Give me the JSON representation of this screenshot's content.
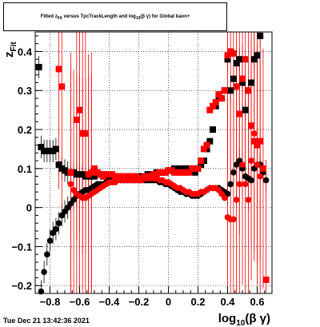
{
  "chart_data": {
    "type": "scatter",
    "title": "Fitted z_Fit versus TpcTrackLength and log10(βγ) for Global kaon+",
    "xlabel": "log10(β γ)",
    "ylabel": "z_Fit",
    "xlim": [
      -0.9,
      0.7
    ],
    "ylim": [
      -0.22,
      0.45
    ],
    "grid": true,
    "x_ticks": [
      "−0.8",
      "−0.6",
      "−0.4",
      "−0.2",
      "0",
      "0.2",
      "0.4",
      "0.6"
    ],
    "y_ticks": [
      "−0.2",
      "−0.1",
      "0",
      "0.1",
      "0.2",
      "0.3",
      "0.4"
    ],
    "series": [
      {
        "marker": "square",
        "color": "#000000",
        "points": [
          [
            -0.875,
            0.36
          ],
          [
            -0.86,
            0.155
          ],
          [
            -0.84,
            0.145
          ],
          [
            -0.82,
            0.145
          ],
          [
            -0.8,
            0.145
          ],
          [
            -0.78,
            0.145
          ],
          [
            -0.76,
            0.15
          ],
          [
            -0.74,
            0.11
          ],
          [
            -0.72,
            0.1
          ],
          [
            -0.7,
            0.095
          ],
          [
            -0.68,
            0.09
          ],
          [
            -0.66,
            0.09
          ],
          [
            -0.64,
            0.09
          ],
          [
            -0.62,
            0.085
          ],
          [
            -0.6,
            0.085
          ],
          [
            -0.58,
            0.085
          ],
          [
            -0.56,
            0.08
          ],
          [
            -0.54,
            0.08
          ],
          [
            -0.52,
            0.08
          ],
          [
            -0.5,
            0.08
          ],
          [
            -0.48,
            0.085
          ],
          [
            -0.46,
            0.085
          ],
          [
            -0.44,
            0.08
          ],
          [
            -0.42,
            0.08
          ],
          [
            -0.4,
            0.08
          ],
          [
            -0.38,
            0.075
          ],
          [
            -0.36,
            0.075
          ],
          [
            -0.34,
            0.08
          ],
          [
            -0.32,
            0.075
          ],
          [
            -0.3,
            0.075
          ],
          [
            -0.28,
            0.075
          ],
          [
            -0.26,
            0.08
          ],
          [
            -0.24,
            0.075
          ],
          [
            -0.22,
            0.08
          ],
          [
            -0.2,
            0.08
          ],
          [
            -0.18,
            0.08
          ],
          [
            -0.16,
            0.08
          ],
          [
            -0.14,
            0.085
          ],
          [
            -0.12,
            0.085
          ],
          [
            -0.1,
            0.085
          ],
          [
            -0.08,
            0.09
          ],
          [
            -0.06,
            0.09
          ],
          [
            -0.04,
            0.09
          ],
          [
            -0.02,
            0.09
          ],
          [
            0.0,
            0.095
          ],
          [
            0.02,
            0.095
          ],
          [
            0.04,
            0.1
          ],
          [
            0.06,
            0.095
          ],
          [
            0.08,
            0.1
          ],
          [
            0.1,
            0.095
          ],
          [
            0.12,
            0.1
          ],
          [
            0.14,
            0.1
          ],
          [
            0.16,
            0.095
          ],
          [
            0.18,
            0.09
          ],
          [
            0.2,
            0.1
          ],
          [
            0.22,
            0.11
          ],
          [
            0.24,
            0.12
          ],
          [
            0.26,
            0.15
          ],
          [
            0.28,
            0.17
          ],
          [
            0.3,
            0.2
          ],
          [
            0.32,
            0.26
          ],
          [
            0.34,
            0.28
          ],
          [
            0.36,
            0.28
          ],
          [
            0.38,
            0.3
          ],
          [
            0.4,
            0.38
          ],
          [
            0.42,
            0.3
          ],
          [
            0.44,
            0.33
          ],
          [
            0.46,
            0.37
          ],
          [
            0.48,
            0.38
          ],
          [
            0.5,
            0.32
          ],
          [
            0.52,
            0.25
          ],
          [
            0.54,
            0.3
          ],
          [
            0.56,
            0.32
          ],
          [
            0.58,
            0.38
          ],
          [
            0.6,
            0.39
          ],
          [
            0.62,
            0.44
          ]
        ]
      },
      {
        "marker": "circle",
        "color": "#000000",
        "points": [
          [
            -0.86,
            -0.215
          ],
          [
            -0.84,
            -0.165
          ],
          [
            -0.82,
            -0.12
          ],
          [
            -0.8,
            -0.085
          ],
          [
            -0.78,
            -0.065
          ],
          [
            -0.76,
            -0.055
          ],
          [
            -0.74,
            -0.04
          ],
          [
            -0.72,
            -0.02
          ],
          [
            -0.7,
            -0.01
          ],
          [
            -0.68,
            0.0
          ],
          [
            -0.66,
            0.01
          ],
          [
            -0.64,
            0.02
          ],
          [
            -0.62,
            0.03
          ],
          [
            -0.6,
            0.035
          ],
          [
            -0.58,
            0.04
          ],
          [
            -0.56,
            0.045
          ],
          [
            -0.54,
            0.045
          ],
          [
            -0.52,
            0.05
          ],
          [
            -0.5,
            0.055
          ],
          [
            -0.48,
            0.06
          ],
          [
            -0.46,
            0.06
          ],
          [
            -0.44,
            0.06
          ],
          [
            -0.42,
            0.065
          ],
          [
            -0.4,
            0.065
          ],
          [
            -0.38,
            0.07
          ],
          [
            -0.36,
            0.07
          ],
          [
            -0.34,
            0.07
          ],
          [
            -0.32,
            0.07
          ],
          [
            -0.3,
            0.07
          ],
          [
            -0.28,
            0.07
          ],
          [
            -0.26,
            0.07
          ],
          [
            -0.24,
            0.07
          ],
          [
            -0.22,
            0.07
          ],
          [
            -0.2,
            0.07
          ],
          [
            -0.18,
            0.07
          ],
          [
            -0.16,
            0.07
          ],
          [
            -0.14,
            0.07
          ],
          [
            -0.12,
            0.07
          ],
          [
            -0.1,
            0.07
          ],
          [
            -0.08,
            0.07
          ],
          [
            -0.06,
            0.065
          ],
          [
            -0.04,
            0.065
          ],
          [
            -0.02,
            0.06
          ],
          [
            0.0,
            0.06
          ],
          [
            0.02,
            0.055
          ],
          [
            0.04,
            0.05
          ],
          [
            0.06,
            0.045
          ],
          [
            0.08,
            0.04
          ],
          [
            0.1,
            0.04
          ],
          [
            0.12,
            0.035
          ],
          [
            0.14,
            0.035
          ],
          [
            0.16,
            0.03
          ],
          [
            0.18,
            0.03
          ],
          [
            0.2,
            0.03
          ],
          [
            0.22,
            0.035
          ],
          [
            0.24,
            0.04
          ],
          [
            0.26,
            0.045
          ],
          [
            0.28,
            0.05
          ],
          [
            0.3,
            0.05
          ],
          [
            0.32,
            0.05
          ],
          [
            0.34,
            0.05
          ],
          [
            0.36,
            0.045
          ],
          [
            0.38,
            0.04
          ],
          [
            0.4,
            0.035
          ],
          [
            0.42,
            0.06
          ],
          [
            0.44,
            0.09
          ],
          [
            0.46,
            0.11
          ],
          [
            0.48,
            0.12
          ],
          [
            0.5,
            0.1
          ],
          [
            0.52,
            0.08
          ],
          [
            0.54,
            0.075
          ],
          [
            0.56,
            0.07
          ],
          [
            0.58,
            0.1
          ],
          [
            0.6,
            0.11
          ],
          [
            0.62,
            0.11
          ],
          [
            0.64,
            0.09
          ],
          [
            0.66,
            0.07
          ]
        ]
      },
      {
        "marker": "square",
        "color": "#ff0000",
        "points": [
          [
            -0.74,
            0.355
          ],
          [
            -0.72,
            0.31
          ],
          [
            -0.66,
            0.09
          ],
          [
            -0.62,
            0.225
          ],
          [
            -0.6,
            0.25
          ],
          [
            -0.58,
            0.19
          ],
          [
            -0.56,
            0.19
          ],
          [
            -0.54,
            0.085
          ],
          [
            -0.52,
            0.09
          ],
          [
            -0.5,
            0.1
          ],
          [
            -0.48,
            0.09
          ],
          [
            -0.46,
            0.085
          ],
          [
            -0.44,
            0.08
          ],
          [
            -0.42,
            0.085
          ],
          [
            -0.4,
            0.085
          ],
          [
            -0.38,
            0.085
          ],
          [
            -0.36,
            0.08
          ],
          [
            -0.34,
            0.075
          ],
          [
            -0.32,
            0.08
          ],
          [
            -0.3,
            0.08
          ],
          [
            -0.28,
            0.075
          ],
          [
            -0.26,
            0.08
          ],
          [
            -0.24,
            0.075
          ],
          [
            -0.22,
            0.08
          ],
          [
            -0.2,
            0.075
          ],
          [
            -0.18,
            0.075
          ],
          [
            -0.16,
            0.08
          ],
          [
            -0.14,
            0.08
          ],
          [
            -0.12,
            0.08
          ],
          [
            -0.1,
            0.085
          ],
          [
            -0.08,
            0.085
          ],
          [
            -0.06,
            0.09
          ],
          [
            -0.04,
            0.09
          ],
          [
            -0.02,
            0.09
          ],
          [
            0.0,
            0.095
          ],
          [
            0.02,
            0.095
          ],
          [
            0.04,
            0.09
          ],
          [
            0.06,
            0.09
          ],
          [
            0.08,
            0.09
          ],
          [
            0.1,
            0.09
          ],
          [
            0.12,
            0.09
          ],
          [
            0.14,
            0.09
          ],
          [
            0.16,
            0.1
          ],
          [
            0.18,
            0.1
          ],
          [
            0.2,
            0.1
          ],
          [
            0.22,
            0.12
          ],
          [
            0.24,
            0.15
          ],
          [
            0.26,
            0.16
          ],
          [
            0.28,
            0.25
          ],
          [
            0.3,
            0.26
          ],
          [
            0.32,
            0.27
          ],
          [
            0.34,
            0.29
          ],
          [
            0.36,
            0.28
          ],
          [
            0.38,
            0.3
          ],
          [
            0.4,
            0.39
          ],
          [
            0.42,
            0.4
          ],
          [
            0.44,
            0.395
          ],
          [
            0.46,
            0.31
          ],
          [
            0.48,
            0.24
          ],
          [
            0.5,
            0.33
          ],
          [
            0.52,
            0.38
          ],
          [
            0.54,
            0.3
          ],
          [
            0.56,
            0.21
          ],
          [
            0.58,
            0.17
          ],
          [
            0.6,
            0.16
          ],
          [
            0.62,
            0.17
          ],
          [
            0.64,
            0.1
          ],
          [
            0.66,
            -0.185
          ]
        ]
      },
      {
        "marker": "circle",
        "color": "#ff0000",
        "points": [
          [
            -0.66,
            0.06
          ],
          [
            -0.64,
            0.045
          ],
          [
            -0.62,
            0.035
          ],
          [
            -0.6,
            0.03
          ],
          [
            -0.58,
            0.025
          ],
          [
            -0.56,
            0.025
          ],
          [
            -0.54,
            0.03
          ],
          [
            -0.52,
            0.035
          ],
          [
            -0.5,
            0.04
          ],
          [
            -0.48,
            0.045
          ],
          [
            -0.46,
            0.05
          ],
          [
            -0.44,
            0.055
          ],
          [
            -0.42,
            0.06
          ],
          [
            -0.4,
            0.065
          ],
          [
            -0.38,
            0.065
          ],
          [
            -0.36,
            0.065
          ],
          [
            -0.34,
            0.07
          ],
          [
            -0.32,
            0.07
          ],
          [
            -0.3,
            0.07
          ],
          [
            -0.28,
            0.07
          ],
          [
            -0.26,
            0.07
          ],
          [
            -0.24,
            0.07
          ],
          [
            -0.22,
            0.07
          ],
          [
            -0.2,
            0.07
          ],
          [
            -0.18,
            0.07
          ],
          [
            -0.16,
            0.075
          ],
          [
            -0.14,
            0.075
          ],
          [
            -0.12,
            0.075
          ],
          [
            -0.1,
            0.075
          ],
          [
            -0.08,
            0.075
          ],
          [
            -0.06,
            0.07
          ],
          [
            -0.04,
            0.07
          ],
          [
            -0.02,
            0.065
          ],
          [
            0.0,
            0.065
          ],
          [
            0.02,
            0.06
          ],
          [
            0.04,
            0.055
          ],
          [
            0.06,
            0.05
          ],
          [
            0.08,
            0.05
          ],
          [
            0.1,
            0.045
          ],
          [
            0.12,
            0.04
          ],
          [
            0.14,
            0.04
          ],
          [
            0.16,
            0.035
          ],
          [
            0.18,
            0.035
          ],
          [
            0.2,
            0.035
          ],
          [
            0.22,
            0.04
          ],
          [
            0.24,
            0.04
          ],
          [
            0.26,
            0.045
          ],
          [
            0.28,
            0.05
          ],
          [
            0.3,
            0.05
          ],
          [
            0.32,
            0.05
          ],
          [
            0.34,
            0.045
          ],
          [
            0.36,
            0.035
          ],
          [
            0.38,
            0.025
          ],
          [
            0.4,
            -0.025
          ],
          [
            0.42,
            -0.03
          ],
          [
            0.44,
            -0.03
          ],
          [
            0.46,
            0.02
          ],
          [
            0.48,
            0.06
          ],
          [
            0.5,
            0.11
          ],
          [
            0.52,
            0.06
          ],
          [
            0.54,
            0.02
          ],
          [
            0.56,
            0.12
          ],
          [
            0.58,
            0.19
          ],
          [
            0.6,
            0.11
          ],
          [
            0.62,
            0.08
          ]
        ]
      }
    ]
  },
  "title": {
    "text": "Fitted  z",
    "sub1": "Fit",
    "mid": "  versus TpcTrackLength and log",
    "sub2": "10",
    "end": "(β γ) for Global kaon+"
  },
  "stamp": "Tue Dec 21 13:42:36 2021",
  "axes": {
    "x_main": "log",
    "x_sub": "10",
    "x_rest": "(β γ)",
    "y_main": "z",
    "y_sub": "Fit"
  }
}
